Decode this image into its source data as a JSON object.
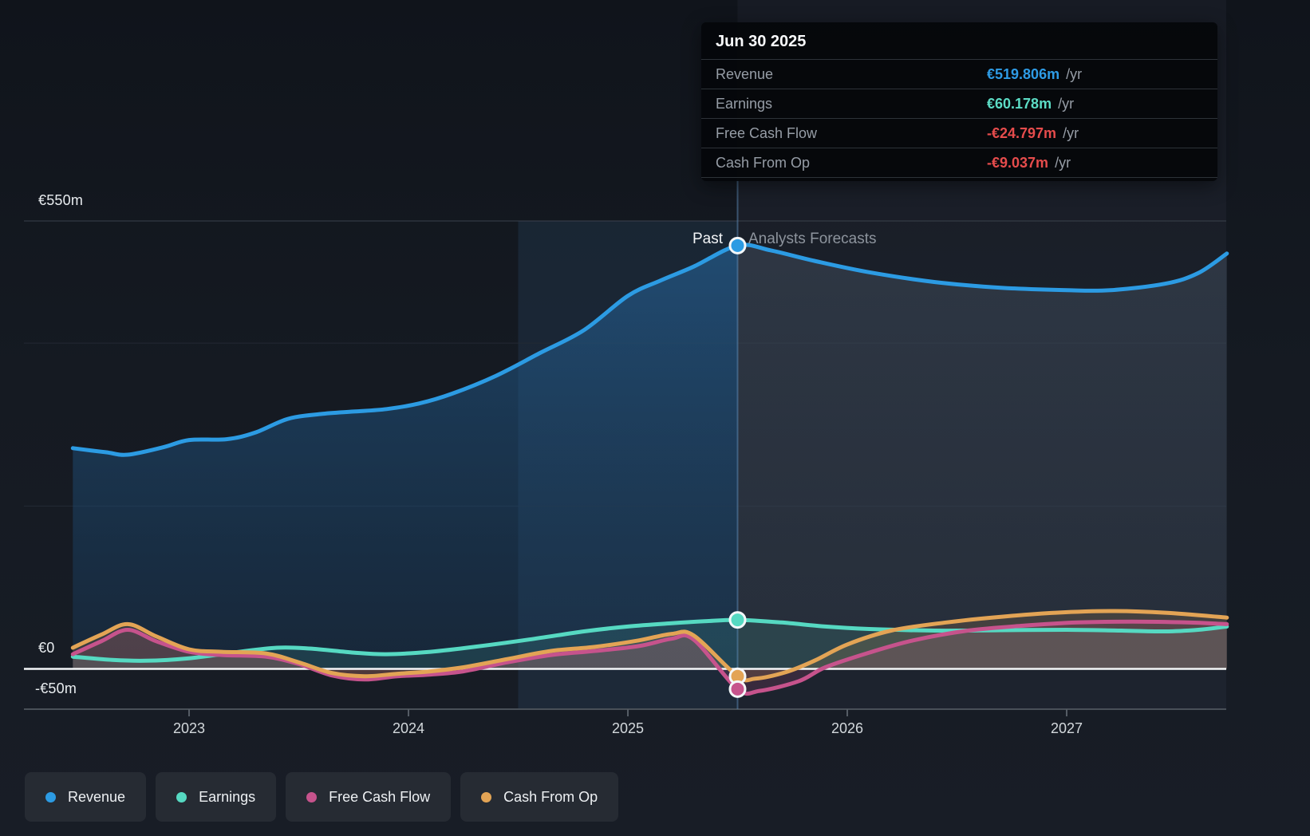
{
  "tooltip": {
    "date": "Jun 30 2025",
    "rows": [
      {
        "label": "Revenue",
        "value": "€519.806m",
        "suffix": "/yr",
        "color": "#2E9BE5"
      },
      {
        "label": "Earnings",
        "value": "€60.178m",
        "suffix": "/yr",
        "color": "#5CDCC5"
      },
      {
        "label": "Free Cash Flow",
        "value": "-€24.797m",
        "suffix": "/yr",
        "color": "#E64C4C"
      },
      {
        "label": "Cash From Op",
        "value": "-€9.037m",
        "suffix": "/yr",
        "color": "#E64C4C"
      }
    ]
  },
  "labels": {
    "past": "Past",
    "forecast": "Analysts Forecasts"
  },
  "legend": [
    {
      "label": "Revenue",
      "color": "#2C9BE3"
    },
    {
      "label": "Earnings",
      "color": "#56D9C2"
    },
    {
      "label": "Free Cash Flow",
      "color": "#C6538C"
    },
    {
      "label": "Cash From Op",
      "color": "#E3A455"
    }
  ],
  "chart_data": {
    "type": "area",
    "x_unit": "decimal_year",
    "xlim": [
      2022.47,
      2027.73
    ],
    "ylim": [
      -50,
      550
    ],
    "ylabel": "€ millions",
    "grid_values": [
      550,
      400,
      200,
      0,
      -50
    ],
    "divider_year": 2025.5,
    "highlight_band_years": [
      2024.5,
      2025.5
    ],
    "y_ticks": [
      {
        "label": "€550m",
        "value": 550
      },
      {
        "label": "€0",
        "value": 0
      },
      {
        "label": "-€50m",
        "value": -50
      }
    ],
    "x_ticks": [
      {
        "label": "2023",
        "value": 2023
      },
      {
        "label": "2024",
        "value": 2024
      },
      {
        "label": "2025",
        "value": 2025
      },
      {
        "label": "2026",
        "value": 2026
      },
      {
        "label": "2027",
        "value": 2027
      }
    ],
    "series": [
      {
        "name": "Revenue",
        "color": "#2C9BE3",
        "points": [
          [
            2022.47,
            271
          ],
          [
            2022.62,
            266
          ],
          [
            2022.72,
            263
          ],
          [
            2022.88,
            272
          ],
          [
            2023.0,
            281
          ],
          [
            2023.17,
            282
          ],
          [
            2023.3,
            290
          ],
          [
            2023.45,
            307
          ],
          [
            2023.6,
            313
          ],
          [
            2023.75,
            316
          ],
          [
            2023.9,
            319
          ],
          [
            2024.05,
            326
          ],
          [
            2024.2,
            338
          ],
          [
            2024.4,
            360
          ],
          [
            2024.6,
            388
          ],
          [
            2024.8,
            416
          ],
          [
            2025.0,
            458
          ],
          [
            2025.15,
            477
          ],
          [
            2025.3,
            494
          ],
          [
            2025.5,
            519.806
          ],
          [
            2025.65,
            514
          ],
          [
            2025.85,
            501
          ],
          [
            2026.1,
            487
          ],
          [
            2026.4,
            475
          ],
          [
            2026.7,
            468
          ],
          [
            2027.0,
            465
          ],
          [
            2027.2,
            465
          ],
          [
            2027.45,
            473
          ],
          [
            2027.6,
            486
          ],
          [
            2027.73,
            510
          ]
        ]
      },
      {
        "name": "Earnings",
        "color": "#56D9C2",
        "points": [
          [
            2022.47,
            15
          ],
          [
            2022.65,
            11
          ],
          [
            2022.8,
            10
          ],
          [
            2023.0,
            13
          ],
          [
            2023.2,
            20
          ],
          [
            2023.4,
            26
          ],
          [
            2023.55,
            25
          ],
          [
            2023.75,
            20
          ],
          [
            2023.9,
            18
          ],
          [
            2024.1,
            21
          ],
          [
            2024.3,
            27
          ],
          [
            2024.55,
            36
          ],
          [
            2024.8,
            46
          ],
          [
            2025.0,
            52
          ],
          [
            2025.2,
            56
          ],
          [
            2025.35,
            58.5
          ],
          [
            2025.5,
            60.178
          ],
          [
            2025.7,
            57
          ],
          [
            2025.9,
            52
          ],
          [
            2026.1,
            49
          ],
          [
            2026.4,
            47
          ],
          [
            2026.7,
            47.5
          ],
          [
            2027.0,
            48
          ],
          [
            2027.25,
            47
          ],
          [
            2027.45,
            46
          ],
          [
            2027.6,
            48
          ],
          [
            2027.73,
            52
          ]
        ]
      },
      {
        "name": "Free Cash Flow",
        "color": "#C6538C",
        "points": [
          [
            2022.47,
            18
          ],
          [
            2022.6,
            34
          ],
          [
            2022.72,
            48
          ],
          [
            2022.85,
            34
          ],
          [
            2023.0,
            21
          ],
          [
            2023.15,
            17
          ],
          [
            2023.35,
            15
          ],
          [
            2023.5,
            6
          ],
          [
            2023.65,
            -8
          ],
          [
            2023.8,
            -13
          ],
          [
            2023.95,
            -9
          ],
          [
            2024.1,
            -7
          ],
          [
            2024.25,
            -3
          ],
          [
            2024.45,
            8
          ],
          [
            2024.65,
            17
          ],
          [
            2024.85,
            22
          ],
          [
            2025.05,
            28
          ],
          [
            2025.2,
            37
          ],
          [
            2025.3,
            36
          ],
          [
            2025.5,
            -24.797
          ],
          [
            2025.6,
            -27
          ],
          [
            2025.78,
            -15
          ],
          [
            2025.9,
            2
          ],
          [
            2026.1,
            20
          ],
          [
            2026.3,
            35
          ],
          [
            2026.55,
            47
          ],
          [
            2026.8,
            53
          ],
          [
            2027.05,
            57
          ],
          [
            2027.3,
            58
          ],
          [
            2027.55,
            57
          ],
          [
            2027.73,
            55
          ]
        ]
      },
      {
        "name": "Cash From Op",
        "color": "#E3A455",
        "points": [
          [
            2022.47,
            26
          ],
          [
            2022.6,
            42
          ],
          [
            2022.72,
            55
          ],
          [
            2022.85,
            40
          ],
          [
            2023.0,
            24
          ],
          [
            2023.15,
            21
          ],
          [
            2023.35,
            19
          ],
          [
            2023.5,
            8
          ],
          [
            2023.65,
            -5
          ],
          [
            2023.8,
            -9
          ],
          [
            2023.95,
            -6
          ],
          [
            2024.1,
            -3
          ],
          [
            2024.25,
            2
          ],
          [
            2024.45,
            12
          ],
          [
            2024.65,
            22
          ],
          [
            2024.85,
            27
          ],
          [
            2025.05,
            35
          ],
          [
            2025.2,
            43
          ],
          [
            2025.3,
            41
          ],
          [
            2025.5,
            -9.037
          ],
          [
            2025.58,
            -12
          ],
          [
            2025.72,
            -4
          ],
          [
            2025.85,
            10
          ],
          [
            2026.0,
            30
          ],
          [
            2026.2,
            47
          ],
          [
            2026.45,
            57
          ],
          [
            2026.7,
            64
          ],
          [
            2026.95,
            69
          ],
          [
            2027.2,
            71
          ],
          [
            2027.45,
            69
          ],
          [
            2027.73,
            63
          ]
        ]
      }
    ]
  }
}
